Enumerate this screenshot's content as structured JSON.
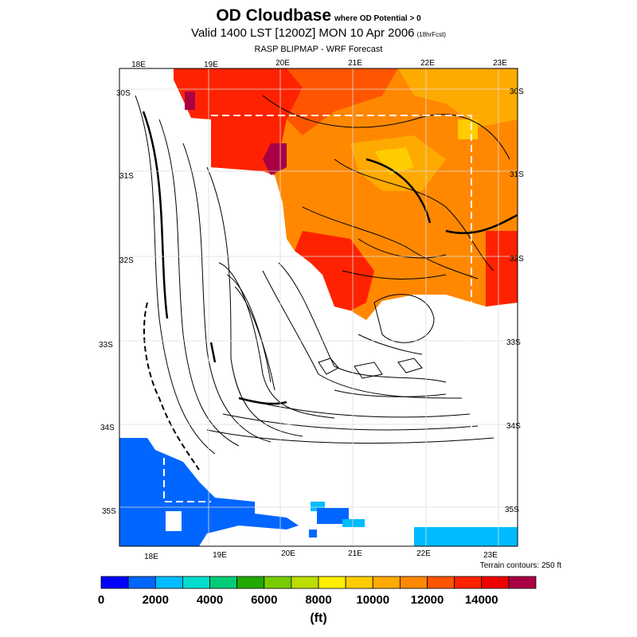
{
  "title": {
    "main": "OD Cloudbase",
    "qualifier": "where OD Potential > 0"
  },
  "subtitle": {
    "valid": "Valid 1400 LST [1200Z] MON 10 Apr 2006",
    "fcst": "(18hrFcst)"
  },
  "source": "RASP BLIPMAP - WRF Forecast",
  "top_lon_labels": [
    "18E",
    "19E",
    "20E",
    "21E",
    "22E",
    "23E"
  ],
  "bottom_lon_labels": [
    "18E",
    "19E",
    "20E",
    "21E",
    "22E",
    "23E"
  ],
  "lat_labels_left": [
    "30S",
    "31S",
    "32S",
    "33S",
    "34S",
    "35S"
  ],
  "lat_labels_right": [
    "30S",
    "31S",
    "32S",
    "33S",
    "34S",
    "35S"
  ],
  "terrain_note": "Terrain contours: 250 ft",
  "colorbar": {
    "colors": [
      "#0000ff",
      "#0066ff",
      "#00bbff",
      "#00ddcc",
      "#00cc77",
      "#22aa00",
      "#77cc00",
      "#bbdd00",
      "#ffee00",
      "#ffcc00",
      "#ffaa00",
      "#ff8800",
      "#ff5500",
      "#ff2200",
      "#ee0000",
      "#aa0044"
    ],
    "labels": [
      "0",
      "2000",
      "4000",
      "6000",
      "8000",
      "10000",
      "12000",
      "14000"
    ],
    "unit": "(ft)"
  }
}
